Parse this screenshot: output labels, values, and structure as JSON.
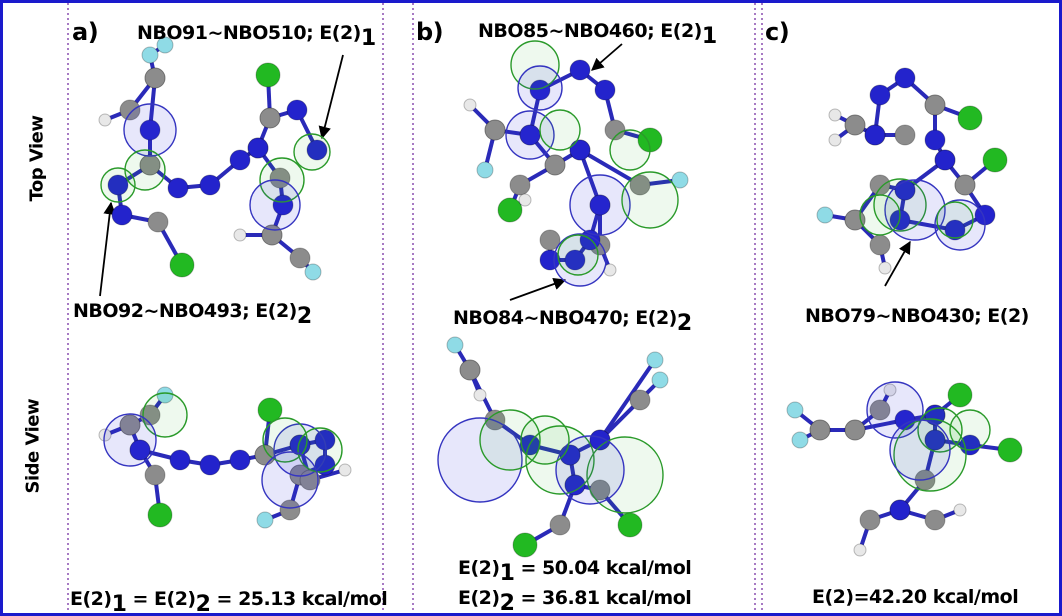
{
  "row_labels": [
    "Top View",
    "Side View"
  ],
  "panels": [
    {
      "label": "a)",
      "upper_annotation": [
        {
          "text": "NBO91~NBO510; E(2)"
        },
        {
          "sub": "1"
        }
      ],
      "lower_annotation": [
        {
          "text": "NBO92~NBO493; E(2)"
        },
        {
          "sub": "2"
        }
      ],
      "energy": [
        [
          {
            "text": "E(2)"
          },
          {
            "sub": "1"
          },
          {
            "text": " = E(2)"
          },
          {
            "sub": "2"
          },
          {
            "text": " = 25.13 kcal/mol"
          }
        ]
      ]
    },
    {
      "label": "b)",
      "upper_annotation": [
        {
          "text": "NBO85~NBO460; E(2)"
        },
        {
          "sub": "1"
        }
      ],
      "lower_annotation": [
        {
          "text": "NBO84~NBO470; E(2)"
        },
        {
          "sub": "2"
        }
      ],
      "energy": [
        [
          {
            "text": "E(2)"
          },
          {
            "sub": "1"
          },
          {
            "text": " = 50.04 kcal/mol"
          }
        ],
        [
          {
            "text": "E(2)"
          },
          {
            "sub": "2"
          },
          {
            "text": " = 36.81 kcal/mol"
          }
        ]
      ]
    },
    {
      "label": "c)",
      "lower_annotation": [
        {
          "text": "NBO79~NBO430; E(2)"
        }
      ],
      "energy": [
        [
          {
            "text": "E(2)=42.20 kcal/mol"
          }
        ]
      ]
    }
  ]
}
